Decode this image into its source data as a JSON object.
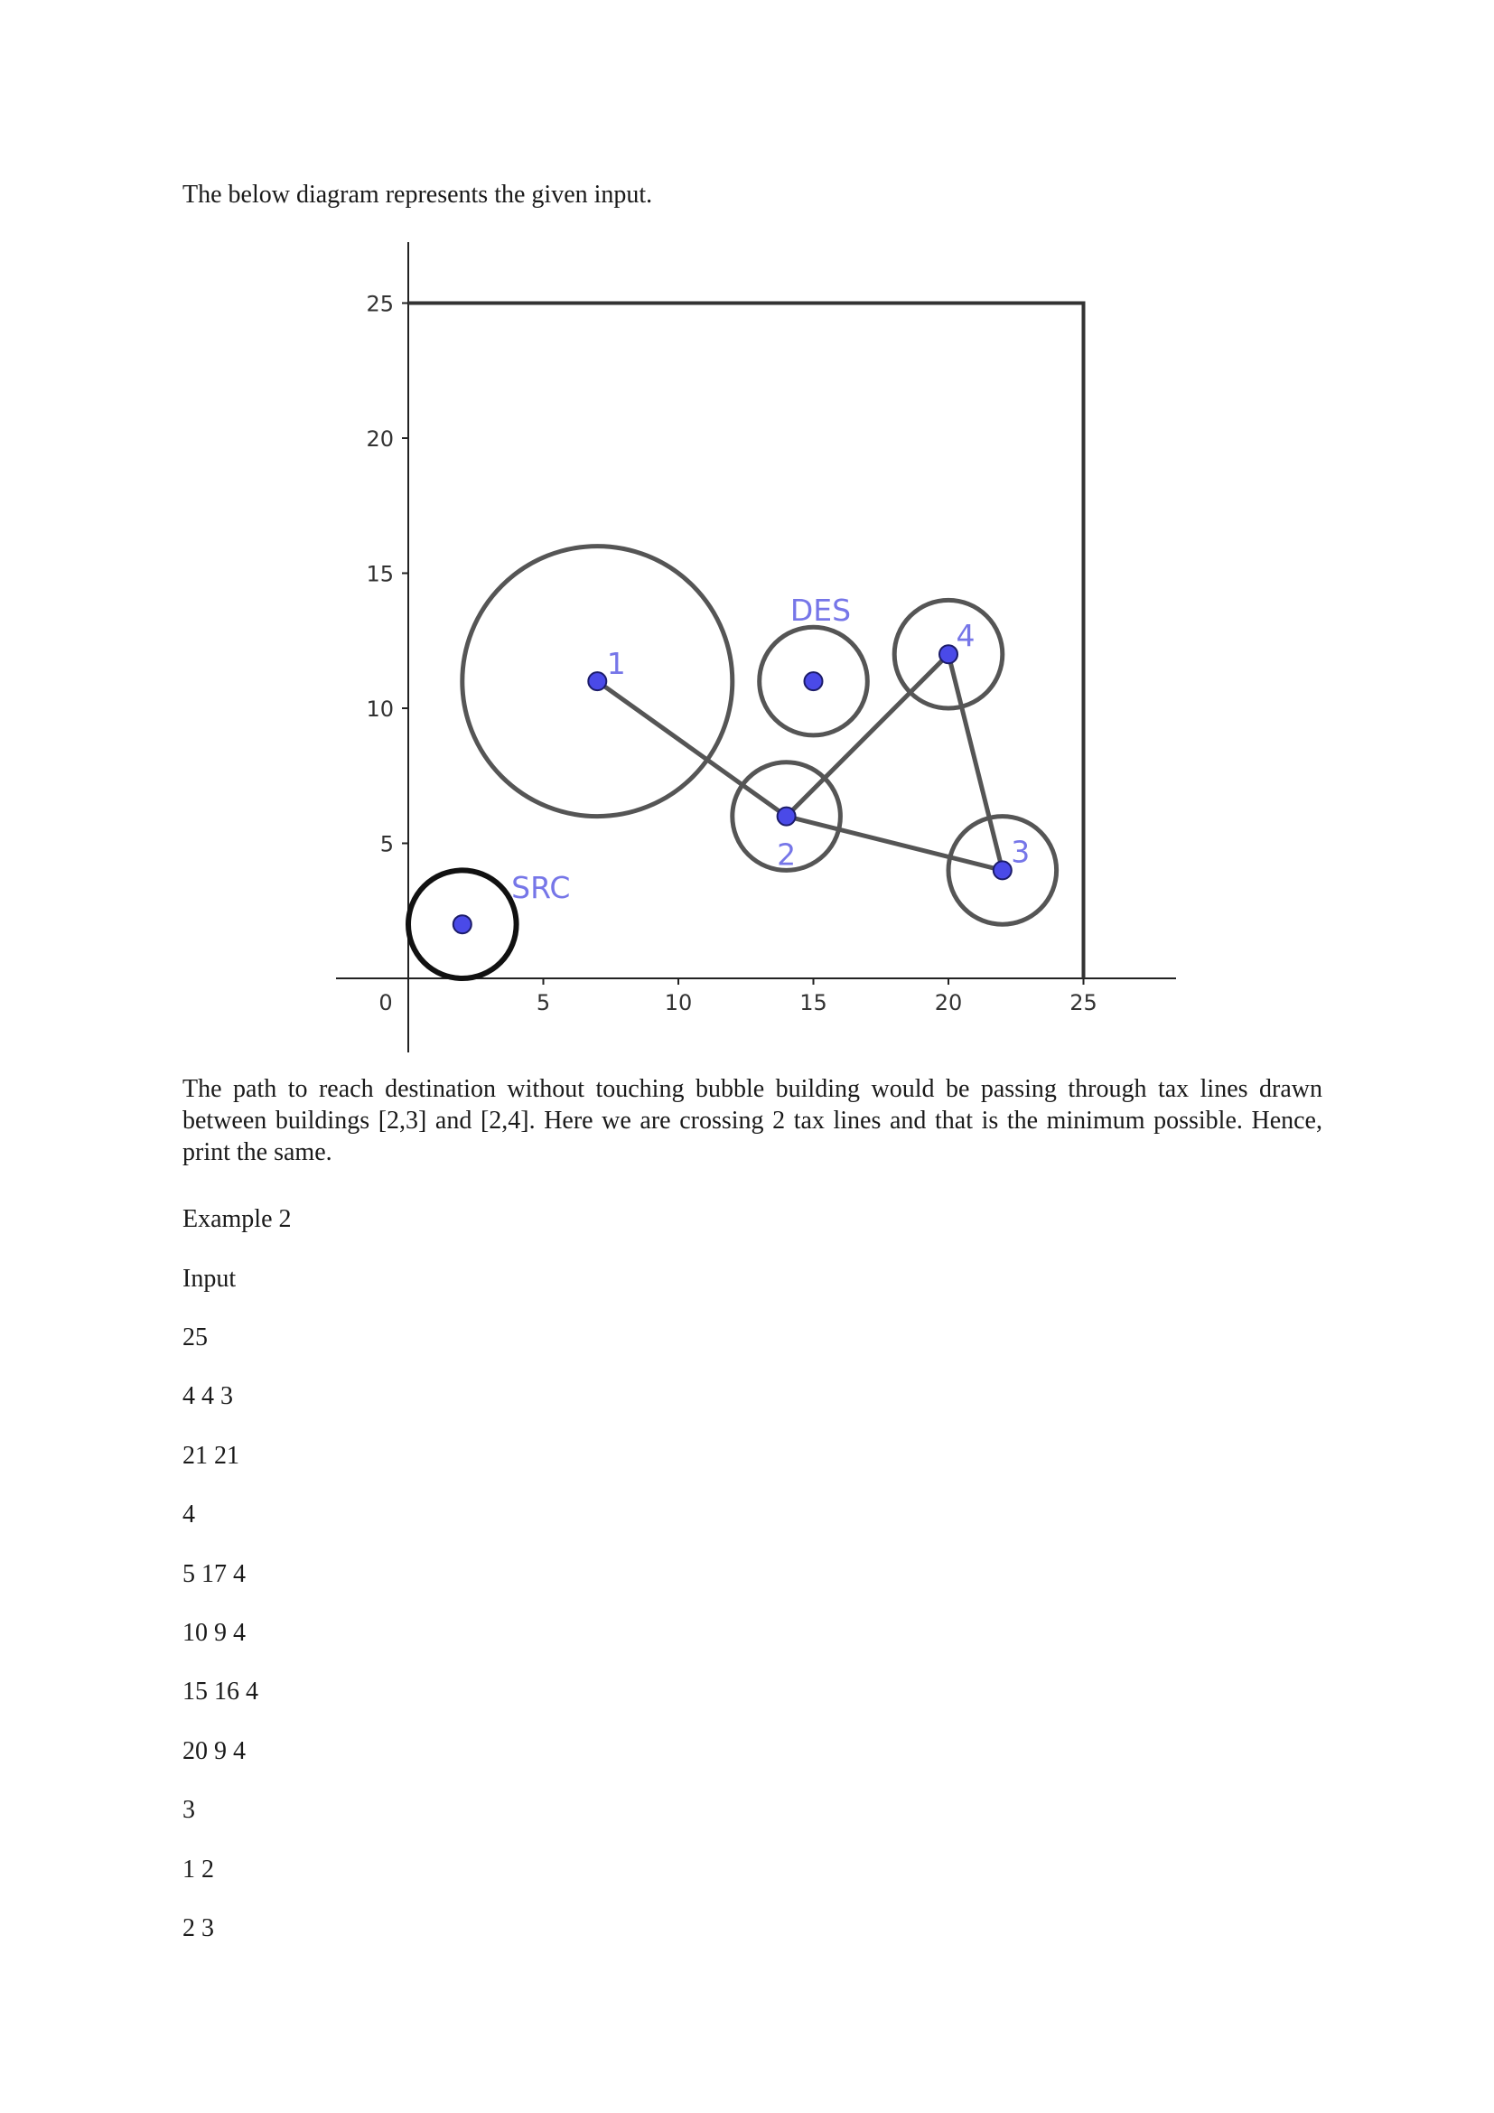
{
  "intro_text": "The below diagram represents the given input.",
  "figure": {
    "x_ticks": [
      "0",
      "5",
      "10",
      "15",
      "20",
      "25"
    ],
    "y_ticks": [
      "5",
      "10",
      "15",
      "20",
      "25"
    ],
    "buildings": [
      {
        "label": "1",
        "x": 7,
        "y": 11,
        "r": 5
      },
      {
        "label": "2",
        "x": 14,
        "y": 6,
        "r": 2
      },
      {
        "label": "3",
        "x": 22,
        "y": 4,
        "r": 2
      },
      {
        "label": "4",
        "x": 20,
        "y": 12,
        "r": 2
      }
    ],
    "source": {
      "label": "SRC",
      "x": 2,
      "y": 2,
      "r": 2
    },
    "destination": {
      "label": "DES",
      "x": 15,
      "y": 11,
      "r": 2
    },
    "tax_lines": [
      [
        1,
        2
      ],
      [
        2,
        3
      ],
      [
        2,
        4
      ],
      [
        3,
        4
      ]
    ],
    "grid_size": 25,
    "colors": {
      "point": "#4a4ae8",
      "label": "#7676e8",
      "stroke": "#555555"
    }
  },
  "explanation": "The path to reach destination without touching bubble building would be passing through tax lines drawn between buildings [2,3] and [2,4]. Here we are crossing 2 tax lines and that is the minimum possible. Hence, print the same.",
  "example_heading": "Example 2",
  "input_label": "Input",
  "input_lines": [
    "25",
    "4 4 3",
    "21 21",
    "4",
    "5 17 4",
    "10 9 4",
    "15 16 4",
    "20 9 4",
    "3",
    "1 2",
    "2 3"
  ]
}
